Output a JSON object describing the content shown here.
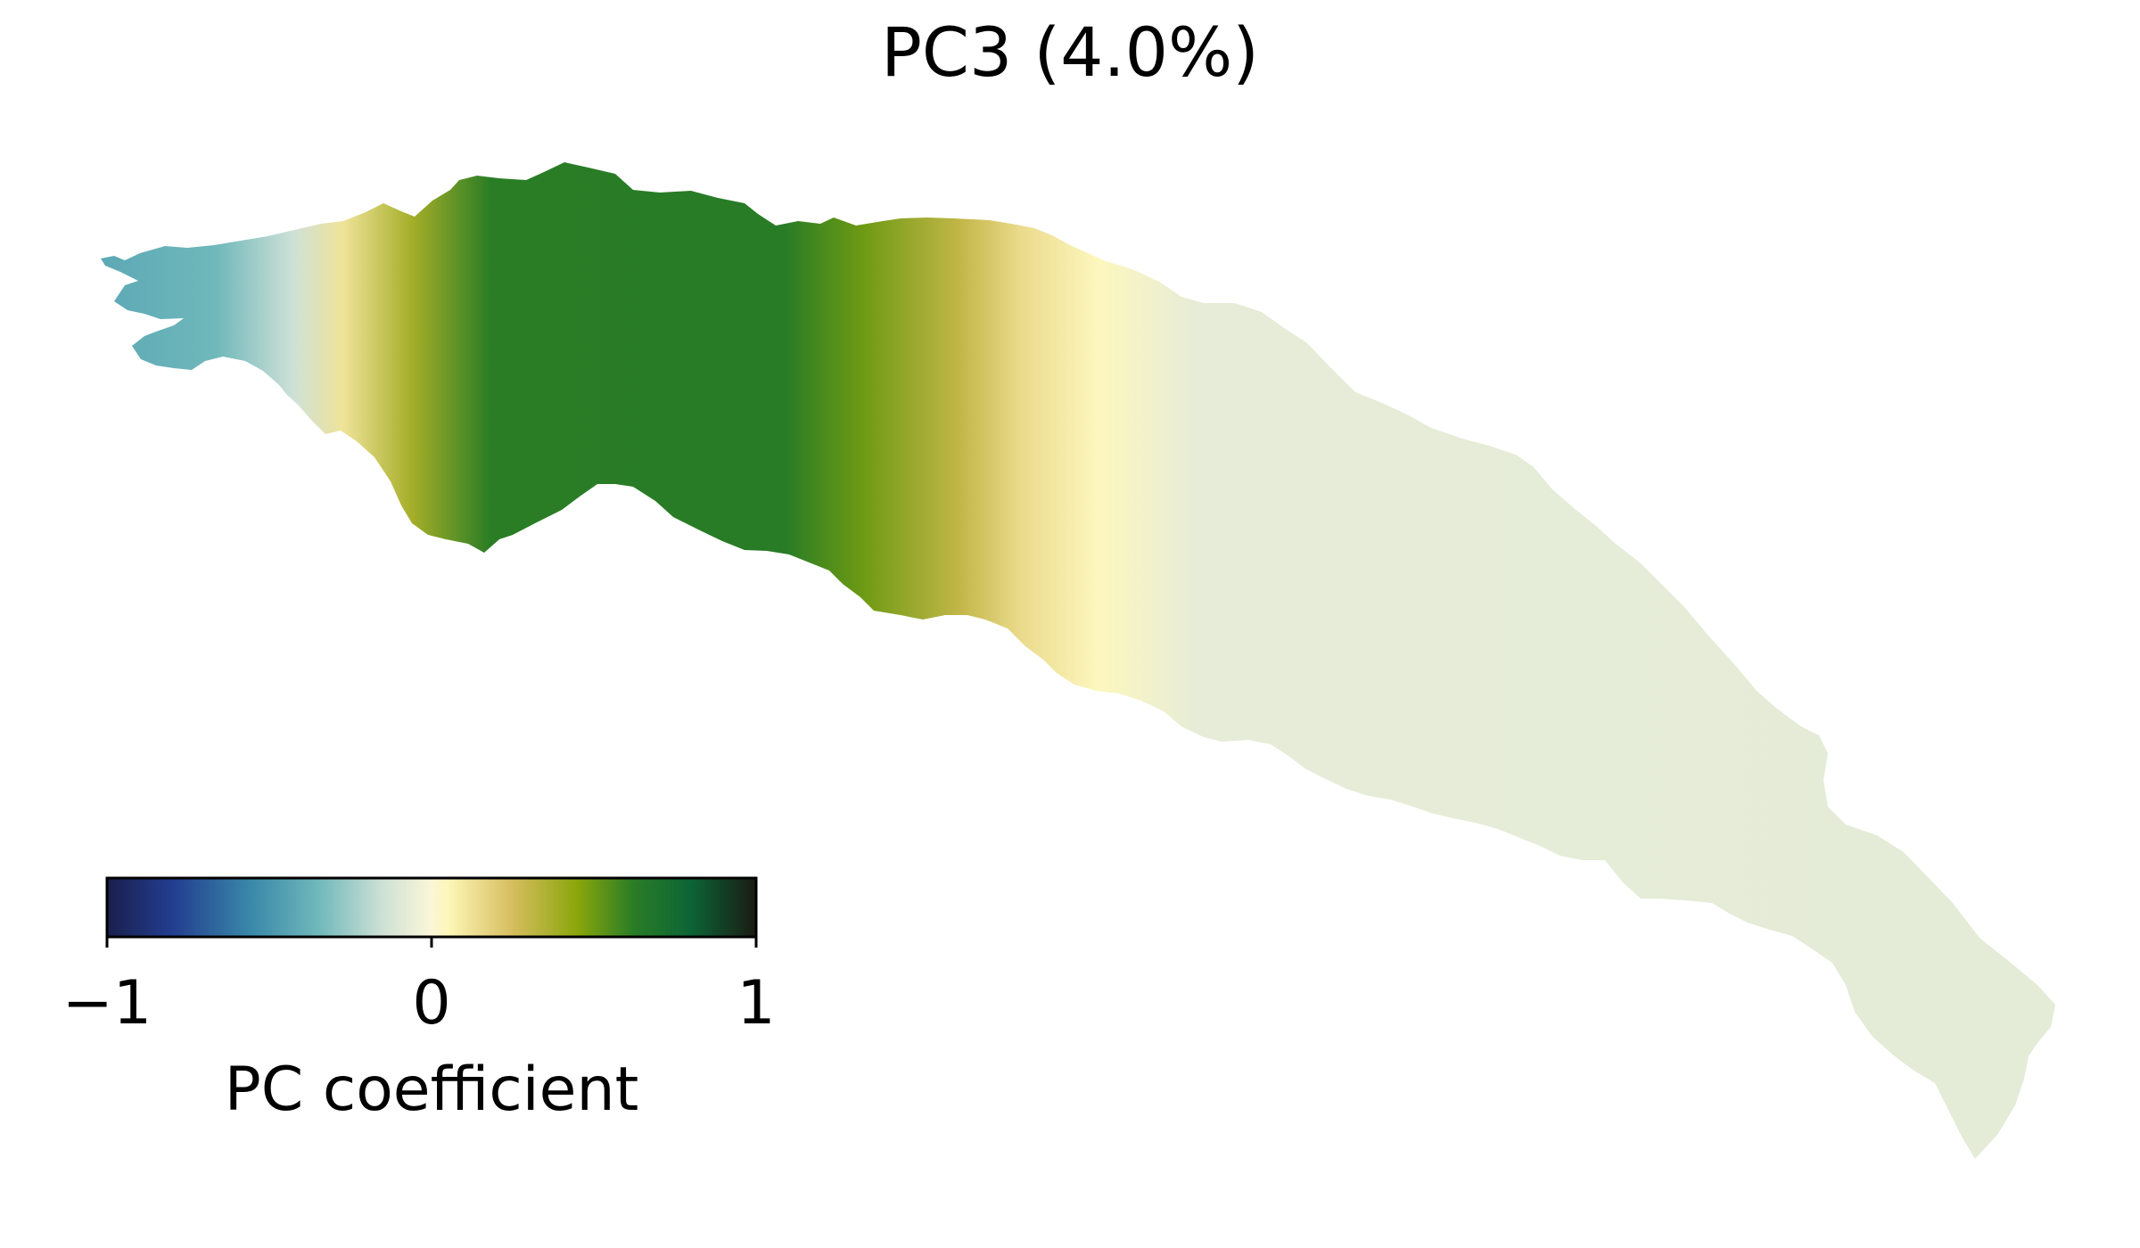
{
  "chart_data": {
    "type": "heatmap",
    "title": "PC3 (4.0%)",
    "colorbar": {
      "label": "PC coefficient",
      "range": [
        -1,
        1
      ],
      "ticks": [
        -1,
        0,
        1
      ],
      "tick_labels": [
        "−1",
        "0",
        "1"
      ],
      "position": "bottom-left",
      "orientation": "horizontal",
      "colormap_stops": [
        {
          "value": -1.0,
          "color": "#1a1f4d"
        },
        {
          "value": -0.8,
          "color": "#223d8f"
        },
        {
          "value": -0.55,
          "color": "#3a8aaa"
        },
        {
          "value": -0.35,
          "color": "#6fb8bb"
        },
        {
          "value": -0.15,
          "color": "#cfe1d6"
        },
        {
          "value": 0.0,
          "color": "#fbf6d8"
        },
        {
          "value": 0.05,
          "color": "#fdf7b8"
        },
        {
          "value": 0.25,
          "color": "#d6bd5e"
        },
        {
          "value": 0.45,
          "color": "#8aa60b"
        },
        {
          "value": 0.62,
          "color": "#2a7d25"
        },
        {
          "value": 0.8,
          "color": "#0c6436"
        },
        {
          "value": 1.0,
          "color": "#1a1a12"
        }
      ]
    },
    "field": {
      "description_axis": "coefficient along the length of the shape (left to right)",
      "profile": [
        {
          "s": 0.0,
          "value": -0.42
        },
        {
          "s": 0.06,
          "value": -0.35
        },
        {
          "s": 0.1,
          "value": -0.15
        },
        {
          "s": 0.125,
          "value": 0.12
        },
        {
          "s": 0.16,
          "value": 0.38
        },
        {
          "s": 0.2,
          "value": 0.62
        },
        {
          "s": 0.35,
          "value": 0.63
        },
        {
          "s": 0.39,
          "value": 0.5
        },
        {
          "s": 0.44,
          "value": 0.3
        },
        {
          "s": 0.47,
          "value": 0.15
        },
        {
          "s": 0.51,
          "value": 0.04
        },
        {
          "s": 0.56,
          "value": -0.07
        },
        {
          "s": 1.0,
          "value": -0.08
        }
      ]
    },
    "grid": false,
    "axes_visible": false
  }
}
